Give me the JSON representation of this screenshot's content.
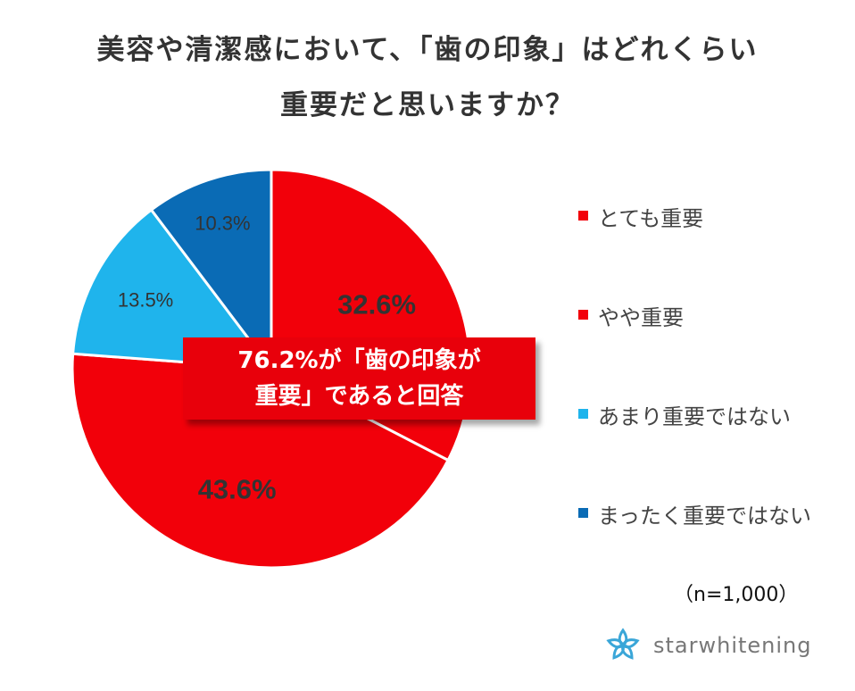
{
  "chart_data": {
    "type": "pie",
    "title_lines": [
      "美容や清潔感において、「歯の印象」はどれくらい",
      "重要だと思いますか？"
    ],
    "slices": [
      {
        "label": "とても重要",
        "value": 32.6,
        "value_label": "32.6%",
        "color": "#f2000a"
      },
      {
        "label": "やや重要",
        "value": 43.6,
        "value_label": "43.6%",
        "color": "#f2000a"
      },
      {
        "label": "あまり重要ではない",
        "value": 13.5,
        "value_label": "13.5%",
        "color": "#1fb4ec"
      },
      {
        "label": "まったく重要ではない",
        "value": 10.3,
        "value_label": "10.3%",
        "color": "#0a6bb5"
      }
    ],
    "start": "12 o'clock",
    "direction": "clockwise",
    "legend_position": "right"
  },
  "callout": {
    "line1": "76.2%が「歯の印象が",
    "line2": "重要」であると回答"
  },
  "sample_size": "（n=1,000）",
  "brand": {
    "name": "starwhitening",
    "icon": "star-flower-icon",
    "icon_color": "#3aa6d8"
  }
}
